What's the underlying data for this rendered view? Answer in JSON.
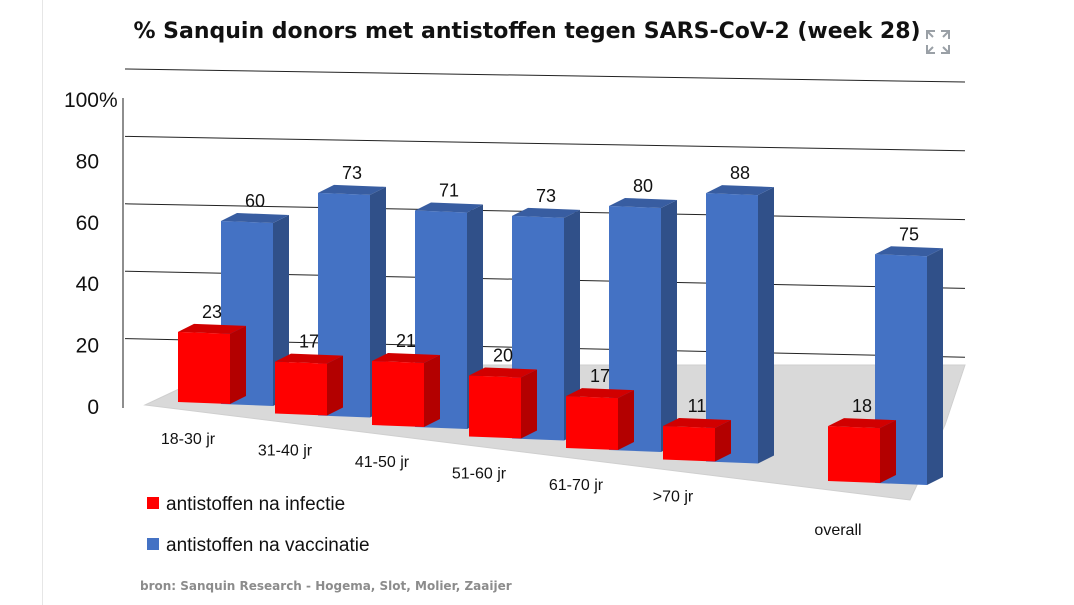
{
  "chart_data": {
    "type": "bar",
    "title": "% Sanquin donors met antistoffen tegen SARS-CoV-2 (week 28)",
    "categories": [
      "18-30 jr",
      "31-40 jr",
      "41-50 jr",
      "51-60 jr",
      "61-70 jr",
      ">70 jr",
      "overall"
    ],
    "series": [
      {
        "name": "antistoffen na vaccinatie",
        "color": "#4472c4",
        "values": [
          60,
          73,
          71,
          73,
          80,
          88,
          75
        ]
      },
      {
        "name": "antistoffen na infectie",
        "color": "#ff0000",
        "values": [
          23,
          17,
          21,
          20,
          17,
          11,
          18
        ]
      }
    ],
    "ylim": [
      0,
      100
    ],
    "yticks": [
      "0",
      "20",
      "40",
      "60",
      "80",
      "100"
    ],
    "y_unit": "%",
    "projection": "3d-perspective",
    "grid": true,
    "legend_position": "bottom-left",
    "source": "bron: Sanquin Research - Hogema, Slot, Molier, Zaaijer"
  },
  "ui": {
    "expand_icon": "expand-icon"
  }
}
